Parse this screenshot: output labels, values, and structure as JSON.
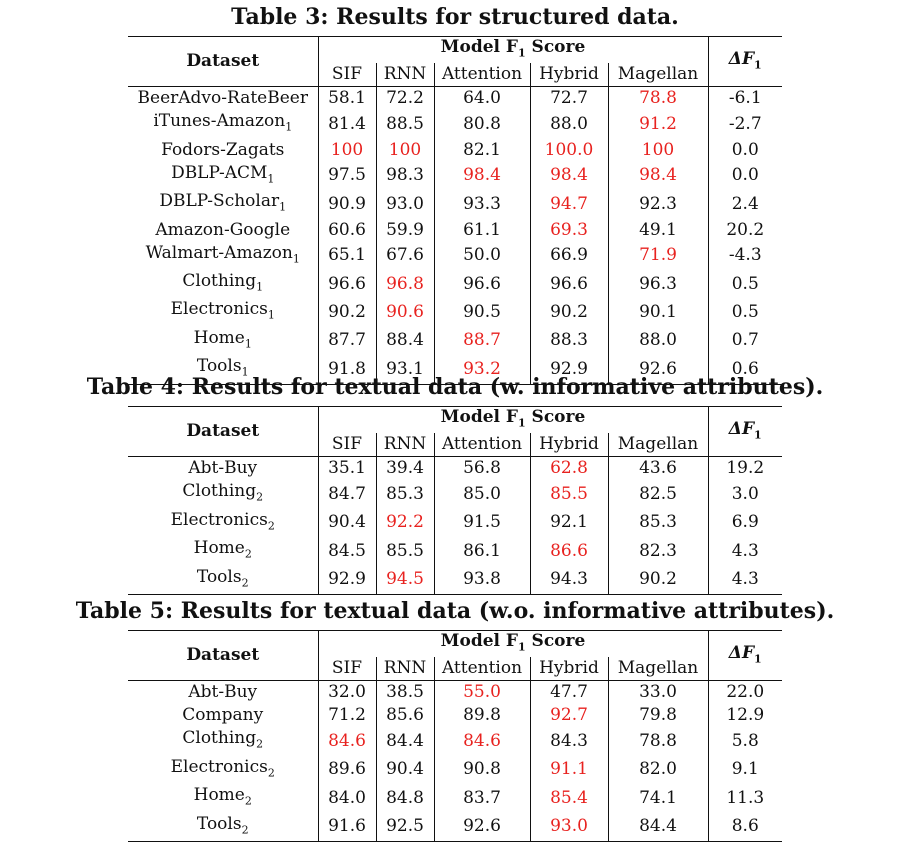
{
  "tables": [
    {
      "caption": "Table 3: Results for structured data.",
      "header": {
        "dataset": "Dataset",
        "model": "Model F",
        "model_sub": "1",
        "model_suffix": " Score",
        "delta": "ΔF",
        "delta_sub": "1"
      },
      "columns": [
        "SIF",
        "RNN",
        "Attention",
        "Hybrid",
        "Magellan"
      ],
      "rows": [
        {
          "name": "BeerAdvo-RateBeer",
          "sub": "",
          "values": [
            "58.1",
            "72.2",
            "64.0",
            "72.7",
            "78.8"
          ],
          "red": [
            false,
            false,
            false,
            false,
            true
          ],
          "delta": "-6.1"
        },
        {
          "name": "iTunes-Amazon",
          "sub": "1",
          "values": [
            "81.4",
            "88.5",
            "80.8",
            "88.0",
            "91.2"
          ],
          "red": [
            false,
            false,
            false,
            false,
            true
          ],
          "delta": "-2.7"
        },
        {
          "name": "Fodors-Zagats",
          "sub": "",
          "values": [
            "100",
            "100",
            "82.1",
            "100.0",
            "100"
          ],
          "red": [
            true,
            true,
            false,
            true,
            true
          ],
          "delta": "0.0"
        },
        {
          "name": "DBLP-ACM",
          "sub": "1",
          "values": [
            "97.5",
            "98.3",
            "98.4",
            "98.4",
            "98.4"
          ],
          "red": [
            false,
            false,
            true,
            true,
            true
          ],
          "delta": "0.0"
        },
        {
          "name": "DBLP-Scholar",
          "sub": "1",
          "values": [
            "90.9",
            "93.0",
            "93.3",
            "94.7",
            "92.3"
          ],
          "red": [
            false,
            false,
            false,
            true,
            false
          ],
          "delta": "2.4"
        },
        {
          "name": "Amazon-Google",
          "sub": "",
          "values": [
            "60.6",
            "59.9",
            "61.1",
            "69.3",
            "49.1"
          ],
          "red": [
            false,
            false,
            false,
            true,
            false
          ],
          "delta": "20.2"
        },
        {
          "name": "Walmart-Amazon",
          "sub": "1",
          "values": [
            "65.1",
            "67.6",
            "50.0",
            "66.9",
            "71.9"
          ],
          "red": [
            false,
            false,
            false,
            false,
            true
          ],
          "delta": "-4.3"
        },
        {
          "name": "Clothing",
          "sub": "1",
          "values": [
            "96.6",
            "96.8",
            "96.6",
            "96.6",
            "96.3"
          ],
          "red": [
            false,
            true,
            false,
            false,
            false
          ],
          "delta": "0.5"
        },
        {
          "name": "Electronics",
          "sub": "1",
          "values": [
            "90.2",
            "90.6",
            "90.5",
            "90.2",
            "90.1"
          ],
          "red": [
            false,
            true,
            false,
            false,
            false
          ],
          "delta": "0.5"
        },
        {
          "name": "Home",
          "sub": "1",
          "values": [
            "87.7",
            "88.4",
            "88.7",
            "88.3",
            "88.0"
          ],
          "red": [
            false,
            false,
            true,
            false,
            false
          ],
          "delta": "0.7"
        },
        {
          "name": "Tools",
          "sub": "1",
          "values": [
            "91.8",
            "93.1",
            "93.2",
            "92.9",
            "92.6"
          ],
          "red": [
            false,
            false,
            true,
            false,
            false
          ],
          "delta": "0.6"
        }
      ]
    },
    {
      "caption": "Table 4: Results for textual data (w. informative attributes).",
      "header": {
        "dataset": "Dataset",
        "model": "Model F",
        "model_sub": "1",
        "model_suffix": " Score",
        "delta": "ΔF",
        "delta_sub": "1"
      },
      "columns": [
        "SIF",
        "RNN",
        "Attention",
        "Hybrid",
        "Magellan"
      ],
      "rows": [
        {
          "name": "Abt-Buy",
          "sub": "",
          "values": [
            "35.1",
            "39.4",
            "56.8",
            "62.8",
            "43.6"
          ],
          "red": [
            false,
            false,
            false,
            true,
            false
          ],
          "delta": "19.2"
        },
        {
          "name": "Clothing",
          "sub": "2",
          "values": [
            "84.7",
            "85.3",
            "85.0",
            "85.5",
            "82.5"
          ],
          "red": [
            false,
            false,
            false,
            true,
            false
          ],
          "delta": "3.0"
        },
        {
          "name": "Electronics",
          "sub": "2",
          "values": [
            "90.4",
            "92.2",
            "91.5",
            "92.1",
            "85.3"
          ],
          "red": [
            false,
            true,
            false,
            false,
            false
          ],
          "delta": "6.9"
        },
        {
          "name": "Home",
          "sub": "2",
          "values": [
            "84.5",
            "85.5",
            "86.1",
            "86.6",
            "82.3"
          ],
          "red": [
            false,
            false,
            false,
            true,
            false
          ],
          "delta": "4.3"
        },
        {
          "name": "Tools",
          "sub": "2",
          "values": [
            "92.9",
            "94.5",
            "93.8",
            "94.3",
            "90.2"
          ],
          "red": [
            false,
            true,
            false,
            false,
            false
          ],
          "delta": "4.3"
        }
      ]
    },
    {
      "caption": "Table 5: Results for textual data (w.o. informative attributes).",
      "header": {
        "dataset": "Dataset",
        "model": "Model F",
        "model_sub": "1",
        "model_suffix": " Score",
        "delta": "ΔF",
        "delta_sub": "1"
      },
      "columns": [
        "SIF",
        "RNN",
        "Attention",
        "Hybrid",
        "Magellan"
      ],
      "rows": [
        {
          "name": "Abt-Buy",
          "sub": "",
          "values": [
            "32.0",
            "38.5",
            "55.0",
            "47.7",
            "33.0"
          ],
          "red": [
            false,
            false,
            true,
            false,
            false
          ],
          "delta": "22.0"
        },
        {
          "name": "Company",
          "sub": "",
          "values": [
            "71.2",
            "85.6",
            "89.8",
            "92.7",
            "79.8"
          ],
          "red": [
            false,
            false,
            false,
            true,
            false
          ],
          "delta": "12.9"
        },
        {
          "name": "Clothing",
          "sub": "2",
          "values": [
            "84.6",
            "84.4",
            "84.6",
            "84.3",
            "78.8"
          ],
          "red": [
            true,
            false,
            true,
            false,
            false
          ],
          "delta": "5.8"
        },
        {
          "name": "Electronics",
          "sub": "2",
          "values": [
            "89.6",
            "90.4",
            "90.8",
            "91.1",
            "82.0"
          ],
          "red": [
            false,
            false,
            false,
            true,
            false
          ],
          "delta": "9.1"
        },
        {
          "name": "Home",
          "sub": "2",
          "values": [
            "84.0",
            "84.8",
            "83.7",
            "85.4",
            "74.1"
          ],
          "red": [
            false,
            false,
            false,
            true,
            false
          ],
          "delta": "11.3"
        },
        {
          "name": "Tools",
          "sub": "2",
          "values": [
            "91.6",
            "92.5",
            "92.6",
            "93.0",
            "84.4"
          ],
          "red": [
            false,
            false,
            false,
            true,
            false
          ],
          "delta": "8.6"
        }
      ]
    }
  ],
  "colors": {
    "highlight": "#e8221f",
    "text": "#111111"
  }
}
